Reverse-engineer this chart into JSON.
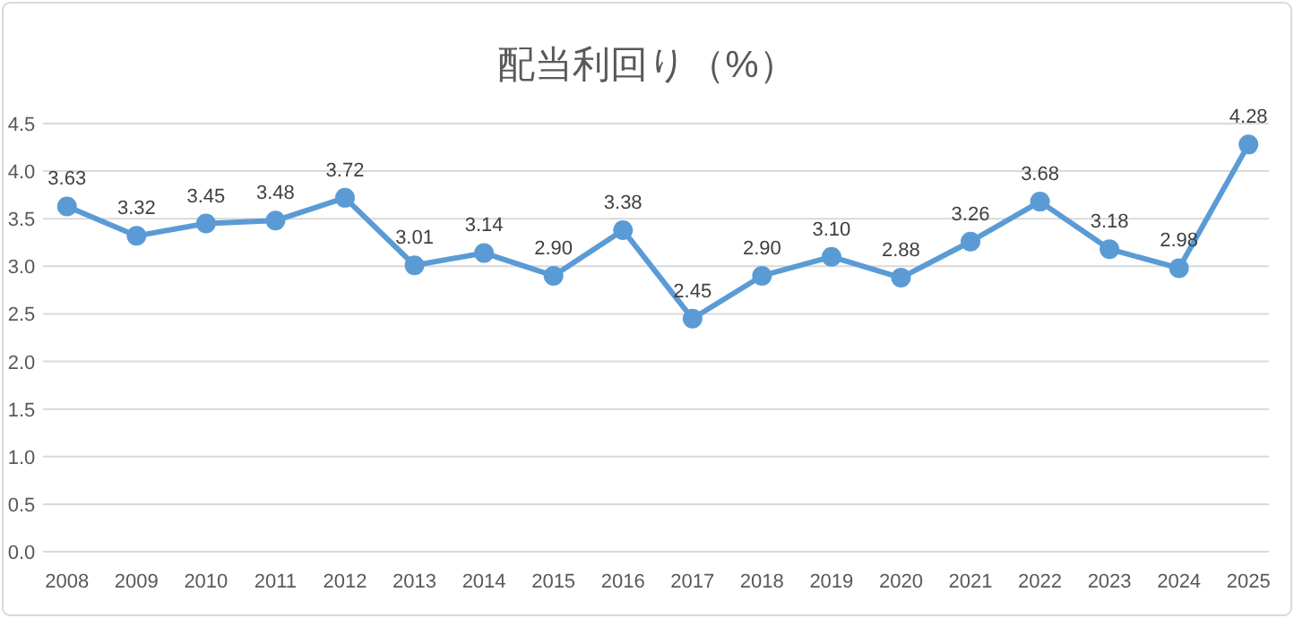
{
  "chart_data": {
    "type": "line",
    "title": "配当利回り（%）",
    "categories": [
      "2008",
      "2009",
      "2010",
      "2011",
      "2012",
      "2013",
      "2014",
      "2015",
      "2016",
      "2017",
      "2018",
      "2019",
      "2020",
      "2021",
      "2022",
      "2023",
      "2024",
      "2025"
    ],
    "values": [
      3.63,
      3.32,
      3.45,
      3.48,
      3.72,
      3.01,
      3.14,
      2.9,
      3.38,
      2.45,
      2.9,
      3.1,
      2.88,
      3.26,
      3.68,
      3.18,
      2.98,
      4.28
    ],
    "value_labels": [
      "3.63",
      "3.32",
      "3.45",
      "3.48",
      "3.72",
      "3.01",
      "3.14",
      "2.90",
      "3.38",
      "2.45",
      "2.90",
      "3.10",
      "2.88",
      "3.26",
      "3.68",
      "3.18",
      "2.98",
      "4.28"
    ],
    "color": "#5b9bd5",
    "ylim": [
      0,
      4.5
    ],
    "yticks": [
      {
        "value": 0,
        "label": "0.0"
      },
      {
        "value": 0.5,
        "label": "0.5"
      },
      {
        "value": 1,
        "label": "1.0"
      },
      {
        "value": 1.5,
        "label": "1.5"
      },
      {
        "value": 2,
        "label": "2.0"
      },
      {
        "value": 2.5,
        "label": "2.5"
      },
      {
        "value": 3,
        "label": "3.0"
      },
      {
        "value": 3.5,
        "label": "3.5"
      },
      {
        "value": 4,
        "label": "4.0"
      },
      {
        "value": 4.5,
        "label": "4.5"
      }
    ],
    "grid": "y",
    "marker": "circle",
    "line_style": "solid"
  }
}
